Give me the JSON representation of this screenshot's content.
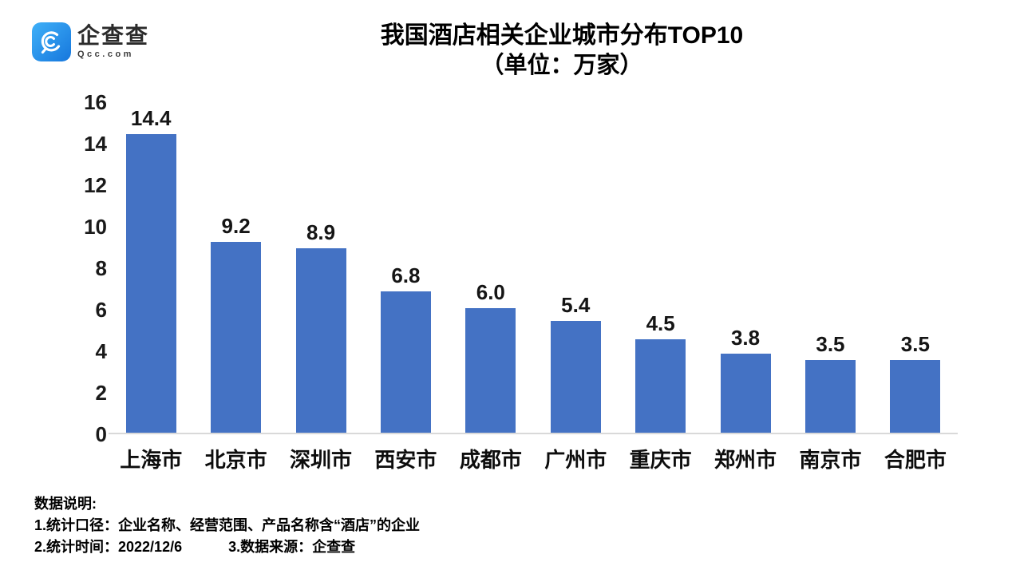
{
  "logo": {
    "name": "企查查",
    "domain": "Qcc.com",
    "icon": "qcc-magnifier-icon",
    "icon_gradient_top": "#3fb0f8",
    "icon_gradient_bottom": "#1677dd"
  },
  "title": {
    "line1": "我国酒店相关企业城市分布TOP10",
    "line2": "（单位：万家）"
  },
  "chart_data": {
    "type": "bar",
    "title": "我国酒店相关企业城市分布TOP10（单位：万家）",
    "categories": [
      "上海市",
      "北京市",
      "深圳市",
      "西安市",
      "成都市",
      "广州市",
      "重庆市",
      "郑州市",
      "南京市",
      "合肥市"
    ],
    "values": [
      14.4,
      9.2,
      8.9,
      6.8,
      6.0,
      5.4,
      4.5,
      3.8,
      3.5,
      3.5
    ],
    "value_labels": [
      "14.4",
      "9.2",
      "8.9",
      "6.8",
      "6.0",
      "5.4",
      "4.5",
      "3.8",
      "3.5",
      "3.5"
    ],
    "xlabel": "",
    "ylabel": "",
    "ylim": [
      0,
      16
    ],
    "yticks": [
      0,
      2,
      4,
      6,
      8,
      10,
      12,
      14,
      16
    ],
    "bar_color": "#4472c4",
    "axis_line_color": "#d9d9d9",
    "grid": false,
    "legend": null
  },
  "footer": {
    "heading": "数据说明:",
    "line1": "1.统计口径：企业名称、经营范围、产品名称含“酒店”的企业",
    "line2_left": "2.统计时间：2022/12/6",
    "line2_right": "3.数据来源：企查查"
  }
}
